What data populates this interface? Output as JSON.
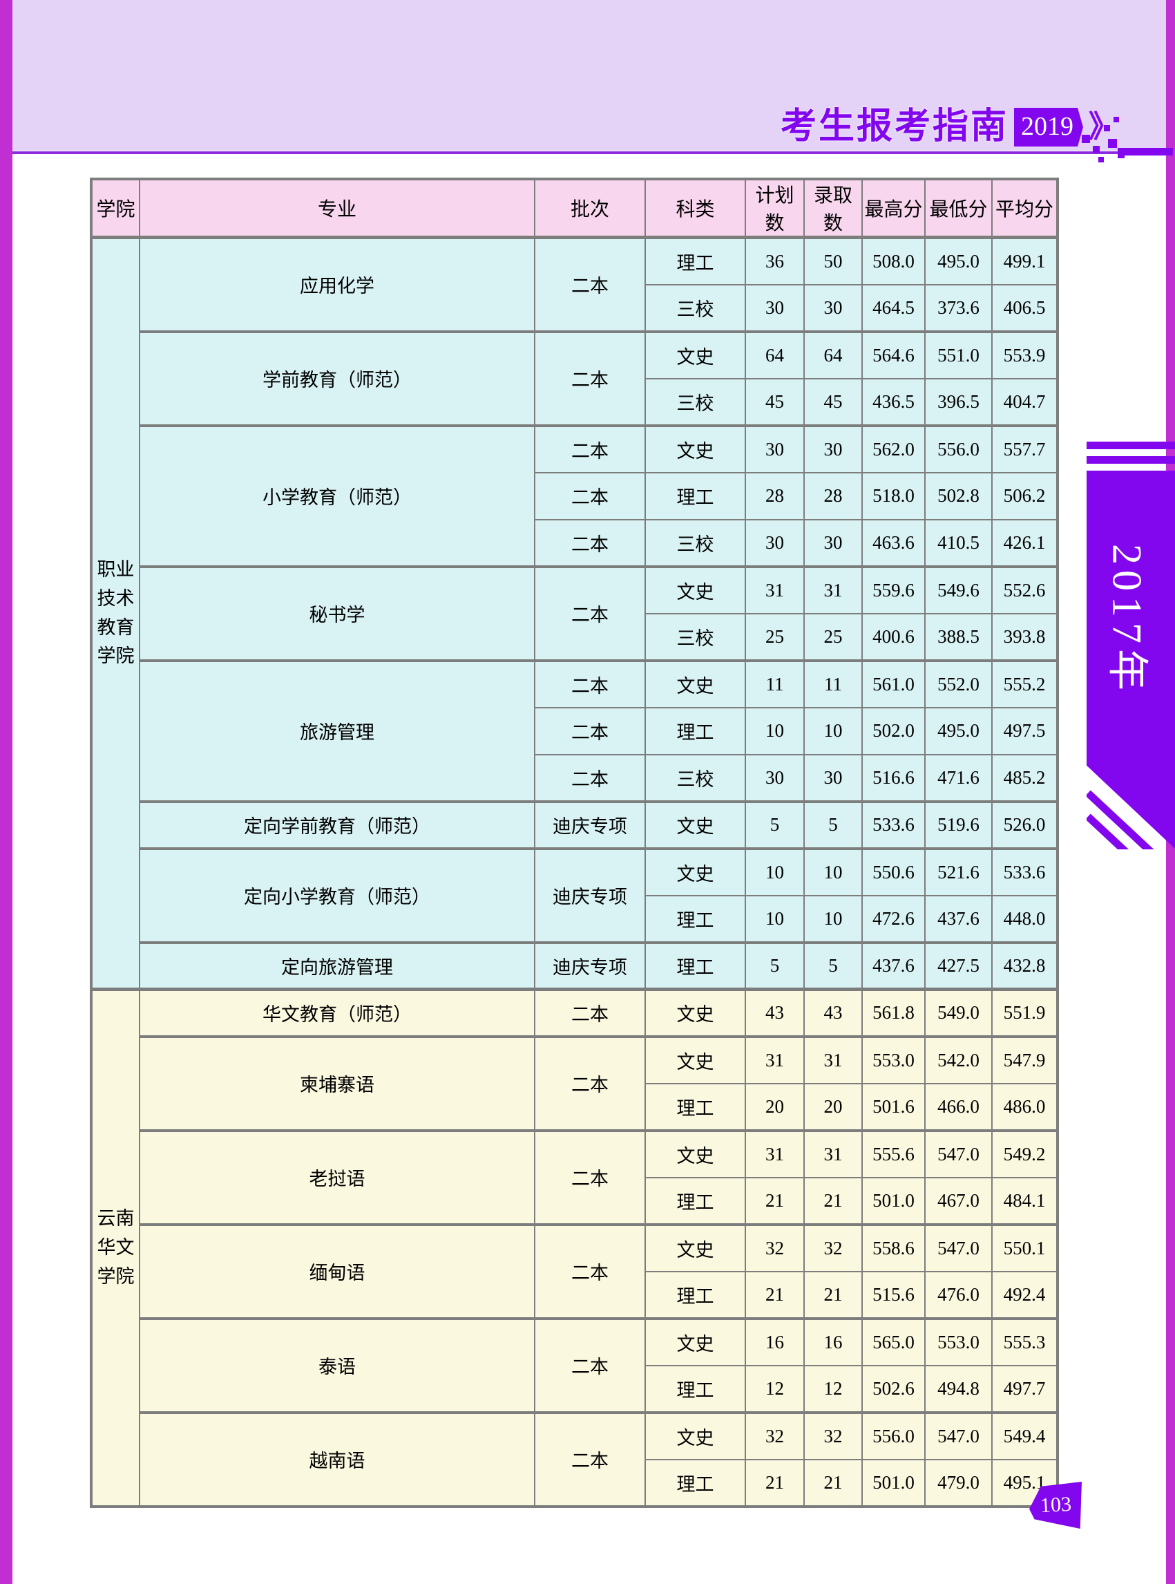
{
  "masthead": {
    "title": "考生报考指南",
    "year": "2019",
    "chevron": "》"
  },
  "ribbon": {
    "year_label": "2017年"
  },
  "footer": {
    "page_number": "103"
  },
  "colors": {
    "accent_purple": "#8206ee",
    "edge_magenta": "#c12fd2",
    "band_lavender": "#e4d3f6",
    "rule_purple": "#8d2ae0",
    "header_pink": "#f8d6ee",
    "group_cyan": "#d9f2f4",
    "group_cream": "#fbf8e0",
    "border_gray": "#7d7d7d"
  },
  "table": {
    "headers": [
      "学院",
      "专业",
      "批次",
      "科类",
      "计划数",
      "录取数",
      "最高分",
      "最低分",
      "平均分"
    ],
    "groups": [
      {
        "college": "职业技术教育学院",
        "theme": "cyan",
        "majors": [
          {
            "name": "应用化学",
            "batches": [
              {
                "batch": "二本",
                "rows": [
                  {
                    "category": "理工",
                    "plan": "36",
                    "admit": "50",
                    "max": "508.0",
                    "min": "495.0",
                    "avg": "499.1"
                  },
                  {
                    "category": "三校",
                    "plan": "30",
                    "admit": "30",
                    "max": "464.5",
                    "min": "373.6",
                    "avg": "406.5"
                  }
                ]
              }
            ]
          },
          {
            "name": "学前教育（师范）",
            "batches": [
              {
                "batch": "二本",
                "rows": [
                  {
                    "category": "文史",
                    "plan": "64",
                    "admit": "64",
                    "max": "564.6",
                    "min": "551.0",
                    "avg": "553.9"
                  },
                  {
                    "category": "三校",
                    "plan": "45",
                    "admit": "45",
                    "max": "436.5",
                    "min": "396.5",
                    "avg": "404.7"
                  }
                ]
              }
            ]
          },
          {
            "name": "小学教育（师范）",
            "batches": [
              {
                "batch": "二本",
                "rows": [
                  {
                    "category": "文史",
                    "plan": "30",
                    "admit": "30",
                    "max": "562.0",
                    "min": "556.0",
                    "avg": "557.7"
                  }
                ]
              },
              {
                "batch": "二本",
                "rows": [
                  {
                    "category": "理工",
                    "plan": "28",
                    "admit": "28",
                    "max": "518.0",
                    "min": "502.8",
                    "avg": "506.2"
                  }
                ]
              },
              {
                "batch": "二本",
                "rows": [
                  {
                    "category": "三校",
                    "plan": "30",
                    "admit": "30",
                    "max": "463.6",
                    "min": "410.5",
                    "avg": "426.1"
                  }
                ]
              }
            ]
          },
          {
            "name": "秘书学",
            "batches": [
              {
                "batch": "二本",
                "rows": [
                  {
                    "category": "文史",
                    "plan": "31",
                    "admit": "31",
                    "max": "559.6",
                    "min": "549.6",
                    "avg": "552.6"
                  },
                  {
                    "category": "三校",
                    "plan": "25",
                    "admit": "25",
                    "max": "400.6",
                    "min": "388.5",
                    "avg": "393.8"
                  }
                ]
              }
            ]
          },
          {
            "name": "旅游管理",
            "batches": [
              {
                "batch": "二本",
                "rows": [
                  {
                    "category": "文史",
                    "plan": "11",
                    "admit": "11",
                    "max": "561.0",
                    "min": "552.0",
                    "avg": "555.2"
                  }
                ]
              },
              {
                "batch": "二本",
                "rows": [
                  {
                    "category": "理工",
                    "plan": "10",
                    "admit": "10",
                    "max": "502.0",
                    "min": "495.0",
                    "avg": "497.5"
                  }
                ]
              },
              {
                "batch": "二本",
                "rows": [
                  {
                    "category": "三校",
                    "plan": "30",
                    "admit": "30",
                    "max": "516.6",
                    "min": "471.6",
                    "avg": "485.2"
                  }
                ]
              }
            ]
          },
          {
            "name": "定向学前教育（师范）",
            "batches": [
              {
                "batch": "迪庆专项",
                "rows": [
                  {
                    "category": "文史",
                    "plan": "5",
                    "admit": "5",
                    "max": "533.6",
                    "min": "519.6",
                    "avg": "526.0"
                  }
                ]
              }
            ]
          },
          {
            "name": "定向小学教育（师范）",
            "batches": [
              {
                "batch": "迪庆专项",
                "rows": [
                  {
                    "category": "文史",
                    "plan": "10",
                    "admit": "10",
                    "max": "550.6",
                    "min": "521.6",
                    "avg": "533.6"
                  },
                  {
                    "category": "理工",
                    "plan": "10",
                    "admit": "10",
                    "max": "472.6",
                    "min": "437.6",
                    "avg": "448.0"
                  }
                ]
              }
            ]
          },
          {
            "name": "定向旅游管理",
            "batches": [
              {
                "batch": "迪庆专项",
                "rows": [
                  {
                    "category": "理工",
                    "plan": "5",
                    "admit": "5",
                    "max": "437.6",
                    "min": "427.5",
                    "avg": "432.8"
                  }
                ]
              }
            ]
          }
        ]
      },
      {
        "college": "云南华文学院",
        "theme": "yellow",
        "majors": [
          {
            "name": "华文教育（师范）",
            "batches": [
              {
                "batch": "二本",
                "rows": [
                  {
                    "category": "文史",
                    "plan": "43",
                    "admit": "43",
                    "max": "561.8",
                    "min": "549.0",
                    "avg": "551.9"
                  }
                ]
              }
            ]
          },
          {
            "name": "柬埔寨语",
            "batches": [
              {
                "batch": "二本",
                "rows": [
                  {
                    "category": "文史",
                    "plan": "31",
                    "admit": "31",
                    "max": "553.0",
                    "min": "542.0",
                    "avg": "547.9"
                  },
                  {
                    "category": "理工",
                    "plan": "20",
                    "admit": "20",
                    "max": "501.6",
                    "min": "466.0",
                    "avg": "486.0"
                  }
                ]
              }
            ]
          },
          {
            "name": "老挝语",
            "batches": [
              {
                "batch": "二本",
                "rows": [
                  {
                    "category": "文史",
                    "plan": "31",
                    "admit": "31",
                    "max": "555.6",
                    "min": "547.0",
                    "avg": "549.2"
                  },
                  {
                    "category": "理工",
                    "plan": "21",
                    "admit": "21",
                    "max": "501.0",
                    "min": "467.0",
                    "avg": "484.1"
                  }
                ]
              }
            ]
          },
          {
            "name": "缅甸语",
            "batches": [
              {
                "batch": "二本",
                "rows": [
                  {
                    "category": "文史",
                    "plan": "32",
                    "admit": "32",
                    "max": "558.6",
                    "min": "547.0",
                    "avg": "550.1"
                  },
                  {
                    "category": "理工",
                    "plan": "21",
                    "admit": "21",
                    "max": "515.6",
                    "min": "476.0",
                    "avg": "492.4"
                  }
                ]
              }
            ]
          },
          {
            "name": "泰语",
            "batches": [
              {
                "batch": "二本",
                "rows": [
                  {
                    "category": "文史",
                    "plan": "16",
                    "admit": "16",
                    "max": "565.0",
                    "min": "553.0",
                    "avg": "555.3"
                  },
                  {
                    "category": "理工",
                    "plan": "12",
                    "admit": "12",
                    "max": "502.6",
                    "min": "494.8",
                    "avg": "497.7"
                  }
                ]
              }
            ]
          },
          {
            "name": "越南语",
            "batches": [
              {
                "batch": "二本",
                "rows": [
                  {
                    "category": "文史",
                    "plan": "32",
                    "admit": "32",
                    "max": "556.0",
                    "min": "547.0",
                    "avg": "549.4"
                  },
                  {
                    "category": "理工",
                    "plan": "21",
                    "admit": "21",
                    "max": "501.0",
                    "min": "479.0",
                    "avg": "495.1"
                  }
                ]
              }
            ]
          }
        ]
      }
    ]
  }
}
